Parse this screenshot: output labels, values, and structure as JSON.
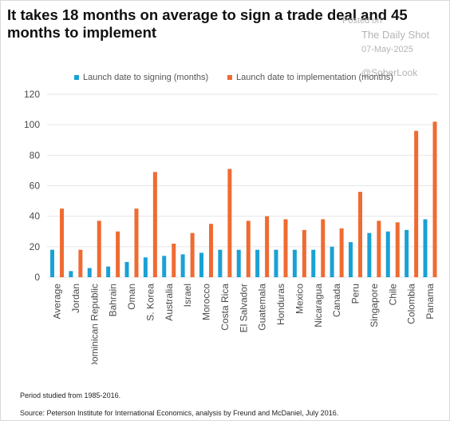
{
  "title": "It takes 18 months on average to sign a trade deal and 45 months to implement",
  "watermark": {
    "posted_on": "Posted on",
    "site": "The Daily Shot",
    "date": "07-May-2025",
    "handle": "@SoberLook"
  },
  "footnotes": {
    "period": "Period studied from 1985-2016.",
    "source": "Source: Peterson Institute for International Economics, analysis by Freund and McDaniel, July 2016."
  },
  "colors": {
    "signing": "#1aa1d4",
    "implementation": "#ef6b32",
    "axis_text": "#4a4a4a",
    "grid": "#e6e6e6"
  },
  "chart_data": {
    "type": "bar",
    "title": "It takes 18 months on average to sign a trade deal and 45 months to implement",
    "xlabel": "",
    "ylabel": "",
    "ylim": [
      0,
      120
    ],
    "yticks": [
      0,
      20,
      40,
      60,
      80,
      100,
      120
    ],
    "grid": "horizontal",
    "legend_position": "top",
    "categories": [
      "Average",
      "Jordan",
      "Dominican Republic",
      "Bahrain",
      "Oman",
      "S. Korea",
      "Australia",
      "Israel",
      "Morocco",
      "Costa Rica",
      "El Salvador",
      "Guatemala",
      "Honduras",
      "Mexico",
      "Nicaragua",
      "Canada",
      "Peru",
      "Singapore",
      "Chile",
      "Colombia",
      "Panama"
    ],
    "series": [
      {
        "name": "Launch date to signing (months)",
        "values": [
          18,
          4,
          6,
          7,
          10,
          13,
          14,
          15,
          16,
          18,
          18,
          18,
          18,
          18,
          18,
          20,
          23,
          29,
          30,
          31,
          38
        ]
      },
      {
        "name": "Launch date to implementation (months)",
        "values": [
          45,
          18,
          37,
          30,
          45,
          69,
          22,
          29,
          35,
          71,
          37,
          40,
          38,
          31,
          38,
          32,
          56,
          37,
          36,
          96,
          102
        ]
      }
    ]
  }
}
